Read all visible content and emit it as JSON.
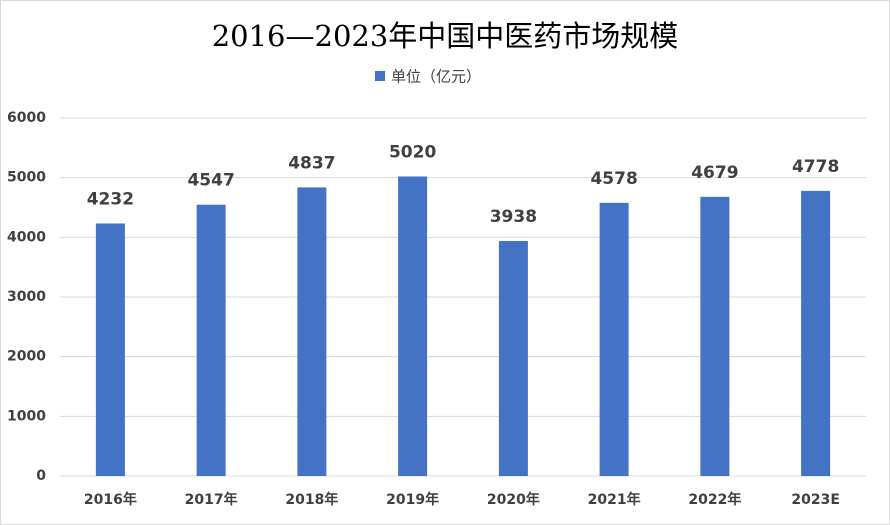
{
  "chart_data": {
    "type": "bar",
    "title": "2016—2023年中国中医药市场规模",
    "categories": [
      "2016年",
      "2017年",
      "2018年",
      "2019年",
      "2020年",
      "2021年",
      "2022年",
      "2023E"
    ],
    "series": [
      {
        "name": "单位（亿元）",
        "color": "#4472c4",
        "values": [
          4232,
          4547,
          4837,
          5020,
          3938,
          4578,
          4679,
          4778
        ]
      }
    ],
    "ylim": [
      0,
      6000
    ],
    "yticks": [
      0,
      1000,
      2000,
      3000,
      4000,
      5000,
      6000
    ],
    "grid": true,
    "legend": "top"
  }
}
